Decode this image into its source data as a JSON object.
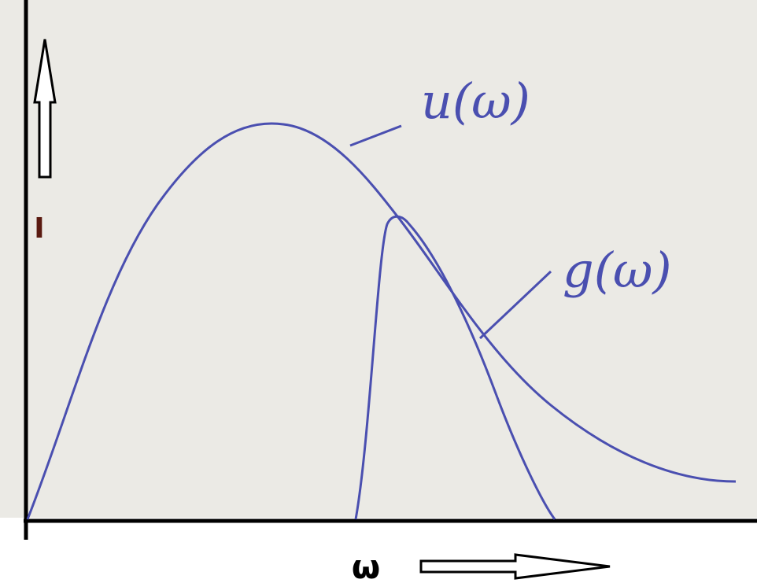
{
  "axes": {
    "y_label": "I",
    "x_label": "ω"
  },
  "curves": [
    {
      "label": "u(ω)"
    },
    {
      "label": "g(ω)"
    }
  ]
}
